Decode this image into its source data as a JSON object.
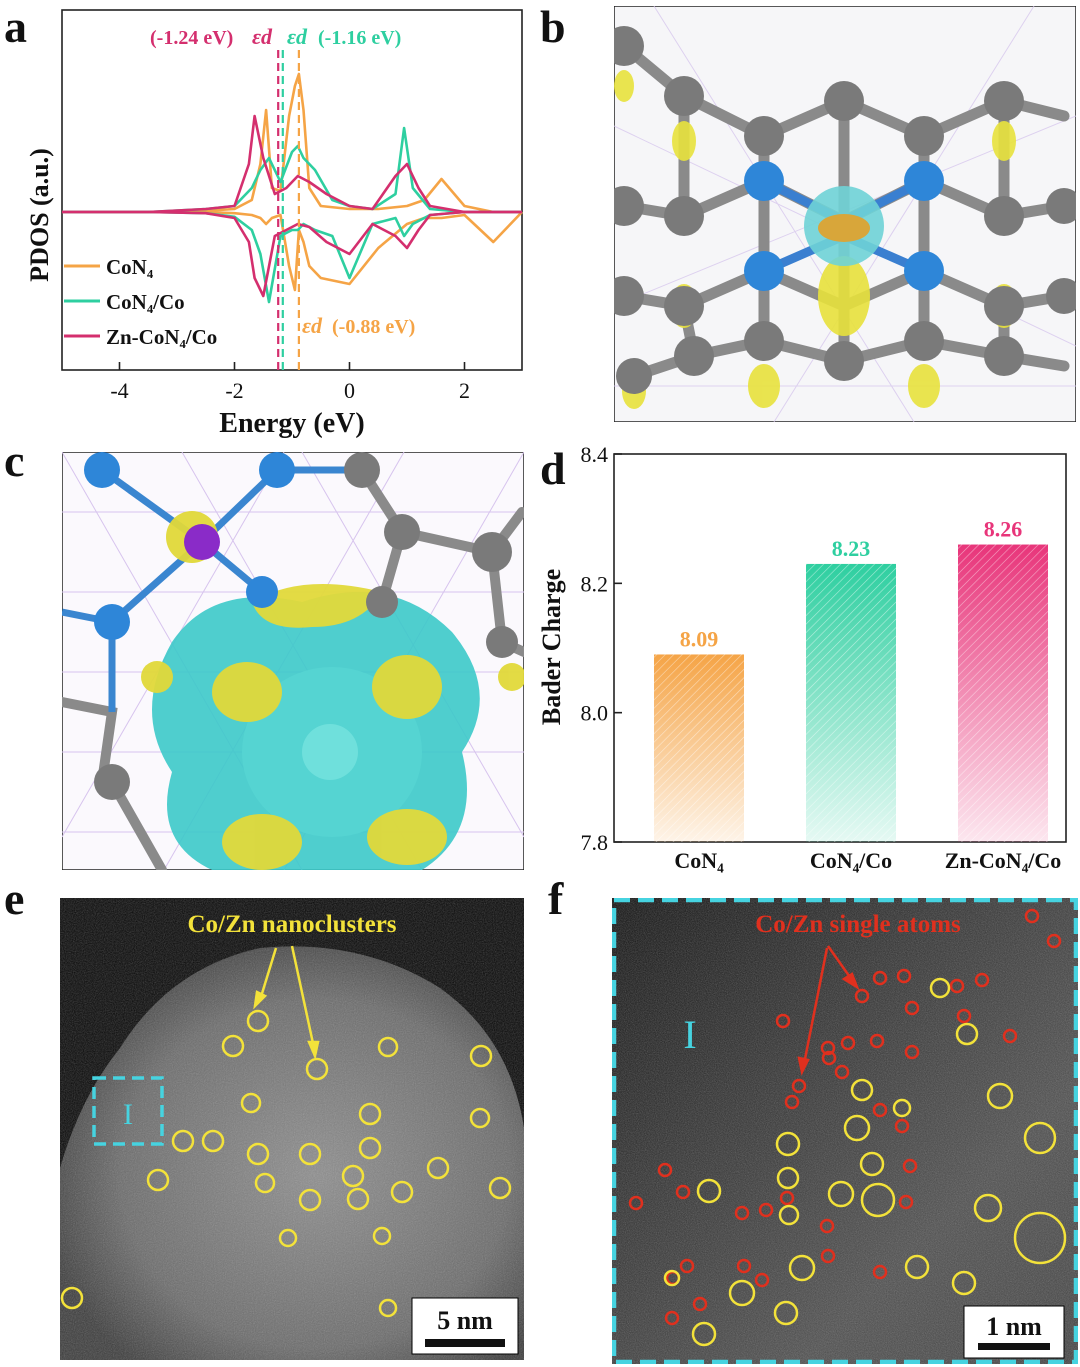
{
  "panel_letters": {
    "a": "a",
    "b": "b",
    "c": "c",
    "d": "d",
    "e": "e",
    "f": "f"
  },
  "colors": {
    "con4": "#f5a446",
    "con4_co": "#2ecfa0",
    "zn_con4_co": "#d42f6e",
    "cyan_frame": "#46d3e0",
    "circle_yellow": "#f3e23a",
    "circle_red": "#e0301e",
    "carbon": "#707070",
    "nitrogen": "#2e86d8",
    "iso_yellow": "#e6e04a",
    "iso_cyan": "#3cc9c9"
  },
  "pdos": {
    "ylabel": "PDOS (a.u.)",
    "xlabel": "Energy (eV)",
    "eps_symbol": "εd",
    "label_zn": "(-1.24 eV)",
    "label_co": "(-1.16 eV)",
    "label_con4": "(-0.88 eV)"
  },
  "chart_data": [
    {
      "type": "line",
      "panel": "a",
      "xlabel": "Energy (eV)",
      "ylabel": "PDOS (a.u.)",
      "xlim": [
        -5,
        3
      ],
      "xticks": [
        "-4",
        "-2",
        "0",
        "2"
      ],
      "xtick_values": [
        -4,
        -2,
        0,
        2
      ],
      "series": [
        {
          "name": "CoN4",
          "display_name": "CoN₄",
          "color": "#f5a446",
          "x": [
            -5,
            -3.5,
            -2.5,
            -2,
            -1.7,
            -1.55,
            -1.45,
            -1.35,
            -1.2,
            -1.05,
            -0.95,
            -0.88,
            -0.8,
            -0.7,
            -0.5,
            0,
            0.5,
            1.0,
            1.3,
            1.6,
            2.0,
            2.5,
            3
          ],
          "up": [
            0.0,
            0.0,
            0.02,
            0.05,
            0.2,
            0.8,
            1.7,
            0.4,
            0.35,
            1.6,
            2.1,
            2.3,
            1.7,
            0.4,
            0.1,
            0.05,
            0.05,
            0.1,
            0.2,
            0.55,
            0.1,
            0.0,
            0.0
          ],
          "down": [
            0.0,
            0.0,
            0.0,
            -0.02,
            -0.05,
            -0.1,
            -0.2,
            -0.1,
            -0.05,
            -0.9,
            -1.3,
            -0.3,
            -0.5,
            -0.9,
            -1.1,
            -1.2,
            -0.6,
            -0.2,
            -0.1,
            -0.1,
            -0.05,
            -0.5,
            0.0
          ]
        },
        {
          "name": "CoN4/Co",
          "display_name": "CoN₄/Co",
          "color": "#2ecfa0",
          "x": [
            -5,
            -3.5,
            -2.5,
            -2,
            -1.7,
            -1.55,
            -1.4,
            -1.2,
            -1.0,
            -0.9,
            -0.8,
            -0.6,
            -0.3,
            0,
            0.4,
            0.8,
            0.95,
            1.1,
            1.4,
            2.0,
            3
          ],
          "up": [
            0.0,
            0.0,
            0.05,
            0.1,
            0.4,
            0.7,
            0.9,
            0.5,
            1.0,
            1.1,
            0.9,
            0.7,
            0.2,
            0.1,
            0.05,
            0.3,
            1.4,
            0.4,
            0.05,
            0.0,
            0.0
          ],
          "down": [
            0.0,
            0.0,
            -0.02,
            -0.08,
            -0.3,
            -0.7,
            -1.5,
            -0.4,
            -0.3,
            -0.3,
            -0.2,
            -0.3,
            -0.4,
            -1.1,
            -0.2,
            -0.1,
            -0.4,
            -0.2,
            -0.05,
            0.0,
            0.0
          ]
        },
        {
          "name": "Zn-CoN4/Co",
          "display_name": "Zn-CoN₄/Co",
          "color": "#d42f6e",
          "x": [
            -5,
            -3.5,
            -2.5,
            -2,
            -1.75,
            -1.65,
            -1.5,
            -1.3,
            -1.1,
            -0.9,
            -0.7,
            -0.4,
            0,
            0.4,
            0.8,
            1.0,
            1.2,
            1.4,
            2.0,
            3
          ],
          "up": [
            0.0,
            0.0,
            0.05,
            0.1,
            0.8,
            1.6,
            0.9,
            0.3,
            0.4,
            0.6,
            0.5,
            0.3,
            0.1,
            0.05,
            0.6,
            0.8,
            0.4,
            0.1,
            0.0,
            0.0
          ],
          "down": [
            0.0,
            0.0,
            -0.02,
            -0.1,
            -0.5,
            -1.1,
            -1.4,
            -0.4,
            -0.3,
            -0.2,
            -0.25,
            -0.5,
            -0.7,
            -0.2,
            -0.4,
            -0.6,
            -0.3,
            -0.05,
            0.0,
            0.0
          ]
        }
      ],
      "d_band_centers": [
        {
          "name": "Zn-CoN4/Co",
          "value": -1.24
        },
        {
          "name": "CoN4/Co",
          "value": -1.16
        },
        {
          "name": "CoN4",
          "value": -0.88
        }
      ]
    },
    {
      "type": "bar",
      "panel": "d",
      "ylabel": "Bader Charge",
      "ylim": [
        7.8,
        8.4
      ],
      "yticks": [
        "7.8",
        "8.0",
        "8.2",
        "8.4"
      ],
      "ytick_values": [
        7.8,
        8.0,
        8.2,
        8.4
      ],
      "categories": [
        "CoN4",
        "CoN4/Co",
        "Zn-CoN4/Co"
      ],
      "category_labels": [
        "CoN₄",
        "CoN₄/Co",
        "Zn-CoN₄/Co"
      ],
      "values": [
        8.09,
        8.23,
        8.26
      ],
      "value_labels": [
        "8.09",
        "8.23",
        "8.26"
      ],
      "colors": [
        "#f5a446",
        "#2ecfa0",
        "#e8357a"
      ]
    }
  ],
  "stem": {
    "label_e": "Co/Zn nanoclusters",
    "label_f": "Co/Zn single atoms",
    "region_label": "I",
    "scale_e": "5 nm",
    "scale_f": "1 nm"
  }
}
